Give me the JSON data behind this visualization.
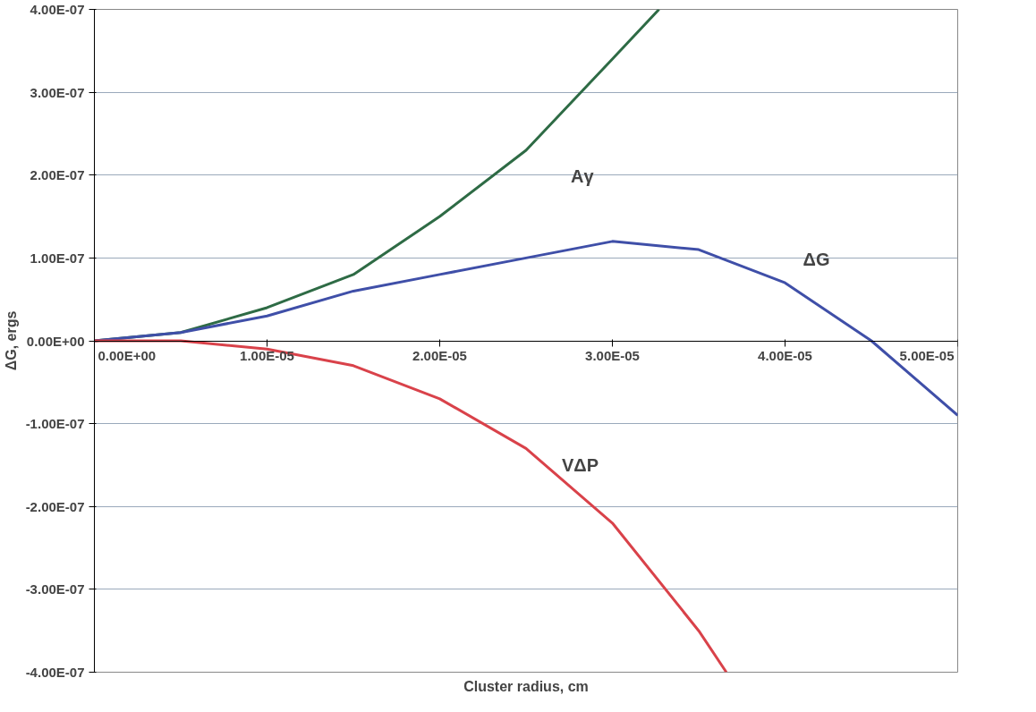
{
  "chart_data": {
    "type": "line",
    "xlabel": "Cluster radius, cm",
    "ylabel": "ΔG, ergs",
    "xlim": [
      0,
      5e-05
    ],
    "ylim": [
      -4e-07,
      4e-07
    ],
    "xticks": [
      {
        "value": 0,
        "label": "0.00E+00"
      },
      {
        "value": 1e-05,
        "label": "1.00E-05"
      },
      {
        "value": 2e-05,
        "label": "2.00E-05"
      },
      {
        "value": 3e-05,
        "label": "3.00E-05"
      },
      {
        "value": 4e-05,
        "label": "4.00E-05"
      },
      {
        "value": 5e-05,
        "label": "5.00E-05"
      }
    ],
    "yticks": [
      {
        "value": -4e-07,
        "label": "-4.00E-07"
      },
      {
        "value": -3e-07,
        "label": "-3.00E-07"
      },
      {
        "value": -2e-07,
        "label": "-2.00E-07"
      },
      {
        "value": -1e-07,
        "label": "-1.00E-07"
      },
      {
        "value": 0,
        "label": "0.00E+00"
      },
      {
        "value": 1e-07,
        "label": "1.00E-07"
      },
      {
        "value": 2e-07,
        "label": "2.00E-07"
      },
      {
        "value": 3e-07,
        "label": "3.00E-07"
      },
      {
        "value": 4e-07,
        "label": "4.00E-07"
      }
    ],
    "grid": "y",
    "legend": false,
    "marker": "none",
    "line_style": "solid",
    "series": [
      {
        "name": "Aγ",
        "color": "#2e6b45",
        "x": [
          0,
          5e-06,
          1e-05,
          1.5e-05,
          2e-05,
          2.5e-05,
          3e-05,
          3.27e-05
        ],
        "values": [
          0,
          1e-08,
          4e-08,
          8e-08,
          1.5e-07,
          2.3e-07,
          3.4e-07,
          4e-07
        ]
      },
      {
        "name": "ΔG",
        "color": "#3f4fa8",
        "x": [
          0,
          5e-06,
          1e-05,
          1.5e-05,
          2e-05,
          2.5e-05,
          3e-05,
          3.5e-05,
          4e-05,
          4.5e-05,
          5e-05
        ],
        "values": [
          0,
          1e-08,
          3e-08,
          6e-08,
          8e-08,
          1e-07,
          1.2e-07,
          1.1e-07,
          7e-08,
          0,
          -9e-08
        ]
      },
      {
        "name": "VΔP",
        "color": "#d9424a",
        "x": [
          0,
          5e-06,
          1e-05,
          1.5e-05,
          2e-05,
          2.5e-05,
          3e-05,
          3.5e-05,
          3.66e-05
        ],
        "values": [
          0,
          0,
          -1e-08,
          -3e-08,
          -7e-08,
          -1.3e-07,
          -2.2e-07,
          -3.5e-07,
          -4e-07
        ]
      }
    ]
  }
}
